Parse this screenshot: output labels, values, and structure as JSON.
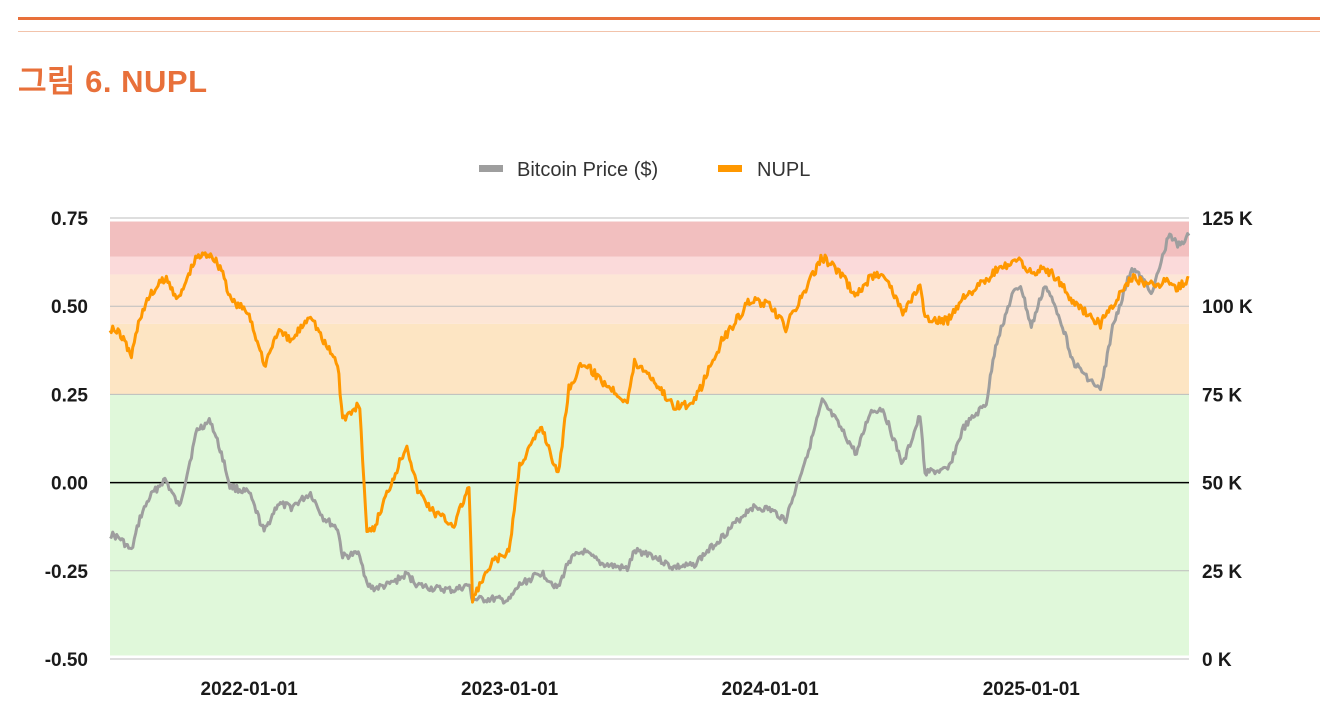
{
  "header": {
    "figure_title": "그림 6. NUPL"
  },
  "colors": {
    "accent": "#e8703a",
    "price_line": "#9e9e9e",
    "nupl_line": "#ff9800",
    "zone_euphoria": "#f2bfbf",
    "zone_belief": "#fbdada",
    "zone_optimism": "#fde6d6",
    "zone_hope": "#fde5c3",
    "zone_capitulation": "#e0f8da"
  },
  "chart_data": {
    "type": "line",
    "title": "",
    "legend": [
      "Bitcoin Price ($)",
      "NUPL"
    ],
    "legend_position": "top-center",
    "x_ticks": [
      "2022-01-01",
      "2023-01-01",
      "2024-01-01",
      "2025-01-01"
    ],
    "x_range": [
      "2021-06-20",
      "2025-08-10"
    ],
    "y_left": {
      "label": "",
      "range": [
        -0.5,
        0.75
      ],
      "ticks": [
        "0.75",
        "0.50",
        "0.25",
        "0.00",
        "-0.25",
        "-0.50"
      ]
    },
    "y_right": {
      "label": "",
      "range": [
        0,
        125000
      ],
      "ticks": [
        "125 K",
        "100 K",
        "75 K",
        "50 K",
        "25 K",
        "0 K"
      ]
    },
    "zones": [
      {
        "from": 0.64,
        "to": 0.74,
        "color_key": "zone_euphoria"
      },
      {
        "from": 0.59,
        "to": 0.64,
        "color_key": "zone_belief"
      },
      {
        "from": 0.45,
        "to": 0.59,
        "color_key": "zone_optimism"
      },
      {
        "from": 0.25,
        "to": 0.45,
        "color_key": "zone_hope"
      },
      {
        "from": -0.49,
        "to": 0.25,
        "color_key": "zone_capitulation"
      }
    ],
    "zero_line": 0,
    "series": [
      {
        "name": "Bitcoin Price ($)",
        "axis": "right",
        "points": [
          [
            "2021-06-20",
            35500
          ],
          [
            "2021-07-05",
            34000
          ],
          [
            "2021-07-20",
            30500
          ],
          [
            "2021-08-01",
            40000
          ],
          [
            "2021-08-15",
            46000
          ],
          [
            "2021-09-05",
            51000
          ],
          [
            "2021-09-25",
            43000
          ],
          [
            "2021-10-10",
            56000
          ],
          [
            "2021-10-20",
            65000
          ],
          [
            "2021-11-08",
            67500
          ],
          [
            "2021-11-25",
            57000
          ],
          [
            "2021-12-05",
            49000
          ],
          [
            "2022-01-01",
            47000
          ],
          [
            "2022-01-22",
            36000
          ],
          [
            "2022-02-10",
            44000
          ],
          [
            "2022-03-01",
            43000
          ],
          [
            "2022-03-28",
            47000
          ],
          [
            "2022-04-15",
            40000
          ],
          [
            "2022-05-05",
            37000
          ],
          [
            "2022-05-12",
            29000
          ],
          [
            "2022-06-05",
            30000
          ],
          [
            "2022-06-15",
            21000
          ],
          [
            "2022-06-25",
            20000
          ],
          [
            "2022-07-15",
            21000
          ],
          [
            "2022-08-10",
            24000
          ],
          [
            "2022-08-25",
            21000
          ],
          [
            "2022-09-15",
            20000
          ],
          [
            "2022-10-15",
            19500
          ],
          [
            "2022-11-05",
            21000
          ],
          [
            "2022-11-10",
            16800
          ],
          [
            "2022-12-10",
            17000
          ],
          [
            "2022-12-31",
            16500
          ],
          [
            "2023-01-15",
            21000
          ],
          [
            "2023-02-15",
            24500
          ],
          [
            "2023-03-10",
            20000
          ],
          [
            "2023-03-25",
            28000
          ],
          [
            "2023-04-14",
            30500
          ],
          [
            "2023-05-10",
            27000
          ],
          [
            "2023-06-15",
            25500
          ],
          [
            "2023-06-25",
            30500
          ],
          [
            "2023-07-15",
            30000
          ],
          [
            "2023-08-17",
            26000
          ],
          [
            "2023-09-15",
            26500
          ],
          [
            "2023-10-25",
            34500
          ],
          [
            "2023-12-05",
            43000
          ],
          [
            "2023-12-31",
            42500
          ],
          [
            "2024-01-23",
            39500
          ],
          [
            "2024-02-28",
            62000
          ],
          [
            "2024-03-14",
            73000
          ],
          [
            "2024-04-01",
            68000
          ],
          [
            "2024-05-01",
            58000
          ],
          [
            "2024-05-20",
            70000
          ],
          [
            "2024-06-07",
            71000
          ],
          [
            "2024-07-05",
            55000
          ],
          [
            "2024-07-29",
            69000
          ],
          [
            "2024-08-05",
            53000
          ],
          [
            "2024-09-06",
            53500
          ],
          [
            "2024-09-28",
            65500
          ],
          [
            "2024-10-30",
            72500
          ],
          [
            "2024-11-12",
            89000
          ],
          [
            "2024-12-05",
            103000
          ],
          [
            "2024-12-17",
            106000
          ],
          [
            "2025-01-01",
            94000
          ],
          [
            "2025-01-20",
            106000
          ],
          [
            "2025-02-10",
            97000
          ],
          [
            "2025-03-01",
            84000
          ],
          [
            "2025-04-08",
            76000
          ],
          [
            "2025-04-25",
            94000
          ],
          [
            "2025-05-22",
            111000
          ],
          [
            "2025-06-20",
            104000
          ],
          [
            "2025-07-14",
            121000
          ],
          [
            "2025-07-25",
            117000
          ],
          [
            "2025-08-10",
            120000
          ]
        ]
      },
      {
        "name": "NUPL",
        "axis": "left",
        "points": [
          [
            "2021-06-20",
            0.44
          ],
          [
            "2021-07-05",
            0.42
          ],
          [
            "2021-07-20",
            0.36
          ],
          [
            "2021-08-01",
            0.47
          ],
          [
            "2021-08-15",
            0.53
          ],
          [
            "2021-09-05",
            0.58
          ],
          [
            "2021-09-25",
            0.52
          ],
          [
            "2021-10-10",
            0.6
          ],
          [
            "2021-10-20",
            0.64
          ],
          [
            "2021-11-08",
            0.65
          ],
          [
            "2021-11-25",
            0.6
          ],
          [
            "2021-12-05",
            0.52
          ],
          [
            "2022-01-01",
            0.48
          ],
          [
            "2022-01-22",
            0.33
          ],
          [
            "2022-02-10",
            0.43
          ],
          [
            "2022-03-01",
            0.4
          ],
          [
            "2022-03-28",
            0.48
          ],
          [
            "2022-04-15",
            0.4
          ],
          [
            "2022-05-05",
            0.34
          ],
          [
            "2022-05-12",
            0.18
          ],
          [
            "2022-06-05",
            0.22
          ],
          [
            "2022-06-15",
            -0.15
          ],
          [
            "2022-06-25",
            -0.13
          ],
          [
            "2022-07-15",
            -0.02
          ],
          [
            "2022-08-10",
            0.11
          ],
          [
            "2022-08-25",
            -0.02
          ],
          [
            "2022-09-15",
            -0.08
          ],
          [
            "2022-10-15",
            -0.12
          ],
          [
            "2022-11-05",
            -0.01
          ],
          [
            "2022-11-10",
            -0.33
          ],
          [
            "2022-12-10",
            -0.22
          ],
          [
            "2022-12-31",
            -0.2
          ],
          [
            "2023-01-15",
            0.05
          ],
          [
            "2023-02-15",
            0.16
          ],
          [
            "2023-03-10",
            0.02
          ],
          [
            "2023-03-25",
            0.27
          ],
          [
            "2023-04-14",
            0.34
          ],
          [
            "2023-05-10",
            0.29
          ],
          [
            "2023-06-15",
            0.23
          ],
          [
            "2023-06-25",
            0.34
          ],
          [
            "2023-07-15",
            0.31
          ],
          [
            "2023-08-17",
            0.22
          ],
          [
            "2023-09-15",
            0.22
          ],
          [
            "2023-10-25",
            0.4
          ],
          [
            "2023-12-05",
            0.52
          ],
          [
            "2023-12-31",
            0.5
          ],
          [
            "2024-01-23",
            0.44
          ],
          [
            "2024-02-28",
            0.58
          ],
          [
            "2024-03-14",
            0.64
          ],
          [
            "2024-04-01",
            0.61
          ],
          [
            "2024-05-01",
            0.53
          ],
          [
            "2024-05-20",
            0.58
          ],
          [
            "2024-06-07",
            0.6
          ],
          [
            "2024-07-05",
            0.48
          ],
          [
            "2024-07-29",
            0.56
          ],
          [
            "2024-08-05",
            0.46
          ],
          [
            "2024-09-06",
            0.46
          ],
          [
            "2024-09-28",
            0.53
          ],
          [
            "2024-10-30",
            0.57
          ],
          [
            "2024-11-12",
            0.6
          ],
          [
            "2024-12-05",
            0.62
          ],
          [
            "2024-12-17",
            0.63
          ],
          [
            "2025-01-01",
            0.59
          ],
          [
            "2025-01-20",
            0.61
          ],
          [
            "2025-02-10",
            0.57
          ],
          [
            "2025-03-01",
            0.51
          ],
          [
            "2025-04-08",
            0.45
          ],
          [
            "2025-04-25",
            0.5
          ],
          [
            "2025-05-22",
            0.58
          ],
          [
            "2025-06-20",
            0.56
          ],
          [
            "2025-07-14",
            0.57
          ],
          [
            "2025-07-25",
            0.55
          ],
          [
            "2025-08-10",
            0.58
          ]
        ]
      }
    ]
  }
}
